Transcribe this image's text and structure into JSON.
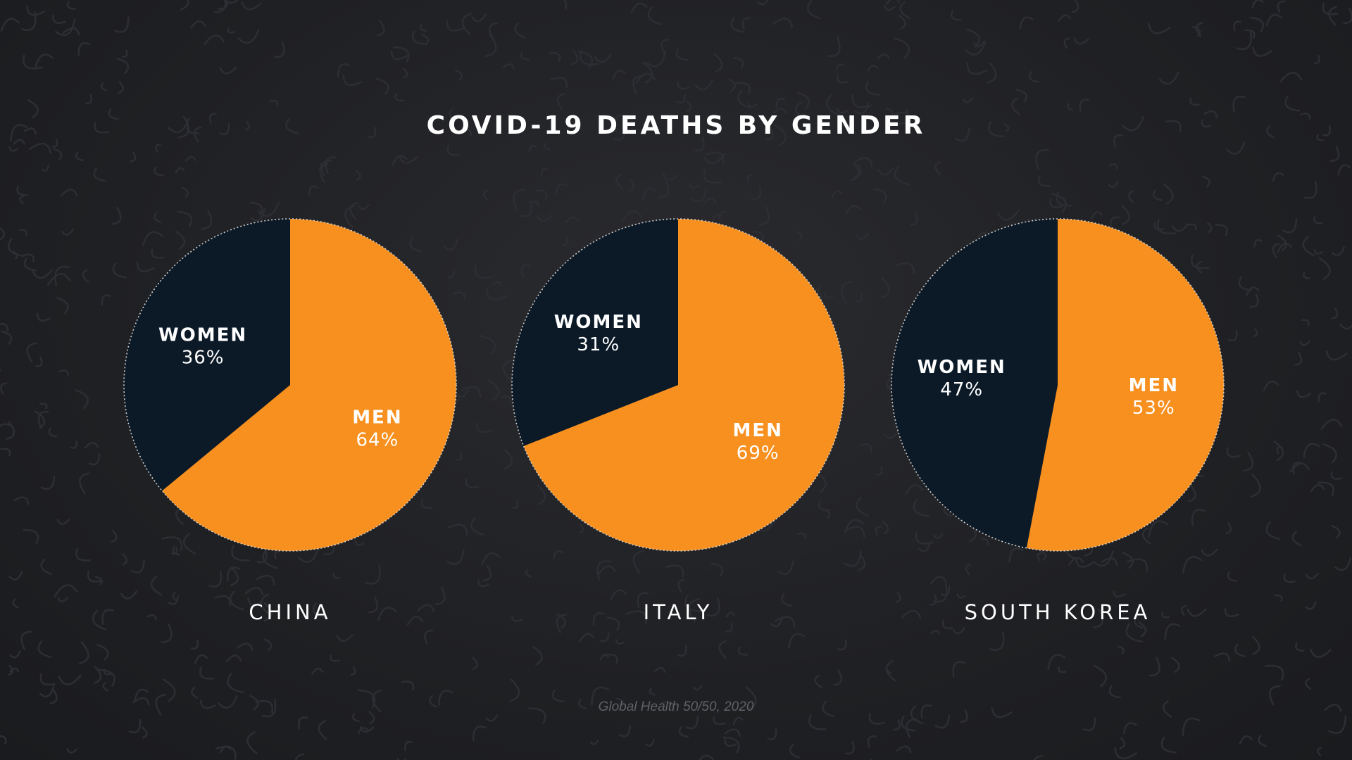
{
  "colors": {
    "men": "#f7901e",
    "women": "#0c1a28",
    "outline": "#cfcfcf",
    "background": "#222326"
  },
  "chart_data": {
    "type": "pie",
    "title": "COVID-19 DEATHS BY GENDER",
    "source": "Global Health 50/50, 2020",
    "charts": [
      {
        "country": "CHINA",
        "slices": [
          {
            "name": "WOMEN",
            "value": 36,
            "display": "36%"
          },
          {
            "name": "MEN",
            "value": 64,
            "display": "64%"
          }
        ]
      },
      {
        "country": "ITALY",
        "slices": [
          {
            "name": "WOMEN",
            "value": 31,
            "display": "31%"
          },
          {
            "name": "MEN",
            "value": 69,
            "display": "69%"
          }
        ]
      },
      {
        "country": "SOUTH KOREA",
        "slices": [
          {
            "name": "WOMEN",
            "value": 47,
            "display": "47%"
          },
          {
            "name": "MEN",
            "value": 53,
            "display": "53%"
          }
        ]
      }
    ]
  }
}
